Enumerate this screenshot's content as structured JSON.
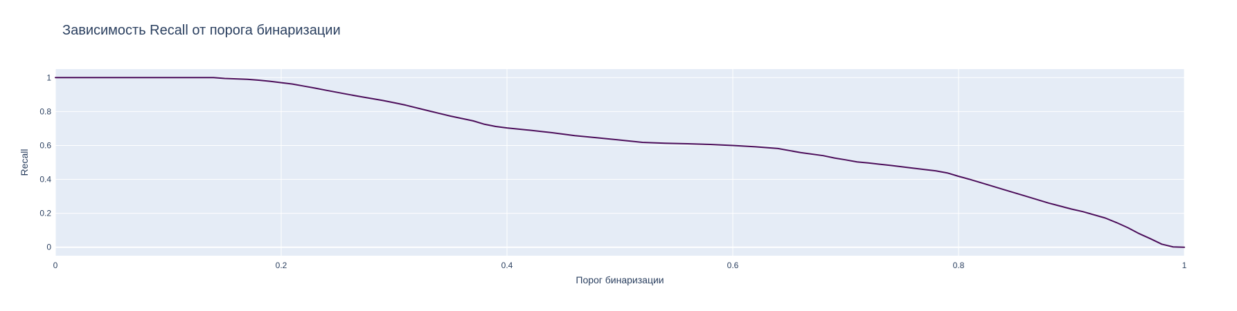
{
  "chart_data": {
    "type": "line",
    "title": "Зависимость Recall от порога бинаризации",
    "xlabel": "Порог бинаризации",
    "ylabel": "Recall",
    "xlim": [
      0,
      1
    ],
    "ylim": [
      -0.05,
      1.05
    ],
    "x_ticks": [
      0,
      0.2,
      0.4,
      0.6,
      0.8,
      1
    ],
    "x_tick_labels": [
      "0",
      "0.2",
      "0.4",
      "0.6",
      "0.8",
      "1"
    ],
    "y_ticks": [
      0,
      0.2,
      0.4,
      0.6,
      0.8,
      1
    ],
    "y_tick_labels": [
      "0",
      "0.2",
      "0.4",
      "0.6",
      "0.8",
      "1"
    ],
    "grid": true,
    "legend": "none",
    "colors": {
      "plot_background": "#e5ecf6",
      "grid": "#ffffff",
      "line": "#4b0c59",
      "text": "#2a3f5f"
    },
    "series": [
      {
        "x": [
          0,
          0.02,
          0.04,
          0.06,
          0.08,
          0.1,
          0.12,
          0.14,
          0.15,
          0.17,
          0.18,
          0.19,
          0.2,
          0.21,
          0.22,
          0.23,
          0.24,
          0.26,
          0.27,
          0.29,
          0.3,
          0.31,
          0.33,
          0.35,
          0.37,
          0.38,
          0.39,
          0.4,
          0.42,
          0.44,
          0.46,
          0.48,
          0.5,
          0.52,
          0.54,
          0.56,
          0.58,
          0.6,
          0.62,
          0.64,
          0.65,
          0.66,
          0.68,
          0.69,
          0.7,
          0.71,
          0.72,
          0.74,
          0.76,
          0.78,
          0.79,
          0.8,
          0.81,
          0.82,
          0.84,
          0.86,
          0.88,
          0.9,
          0.91,
          0.93,
          0.94,
          0.95,
          0.96,
          0.97,
          0.98,
          0.99,
          1.0
        ],
        "y": [
          1.0,
          1.0,
          1.0,
          1.0,
          1.0,
          1.0,
          1.0,
          1.0,
          0.995,
          0.99,
          0.985,
          0.978,
          0.97,
          0.962,
          0.95,
          0.938,
          0.925,
          0.9,
          0.888,
          0.865,
          0.852,
          0.838,
          0.805,
          0.773,
          0.745,
          0.725,
          0.712,
          0.703,
          0.69,
          0.675,
          0.658,
          0.645,
          0.632,
          0.618,
          0.613,
          0.61,
          0.606,
          0.6,
          0.592,
          0.582,
          0.57,
          0.558,
          0.54,
          0.526,
          0.515,
          0.503,
          0.497,
          0.482,
          0.466,
          0.45,
          0.438,
          0.418,
          0.4,
          0.38,
          0.34,
          0.3,
          0.26,
          0.225,
          0.21,
          0.172,
          0.145,
          0.115,
          0.08,
          0.05,
          0.018,
          0.002,
          0.0
        ]
      }
    ]
  }
}
